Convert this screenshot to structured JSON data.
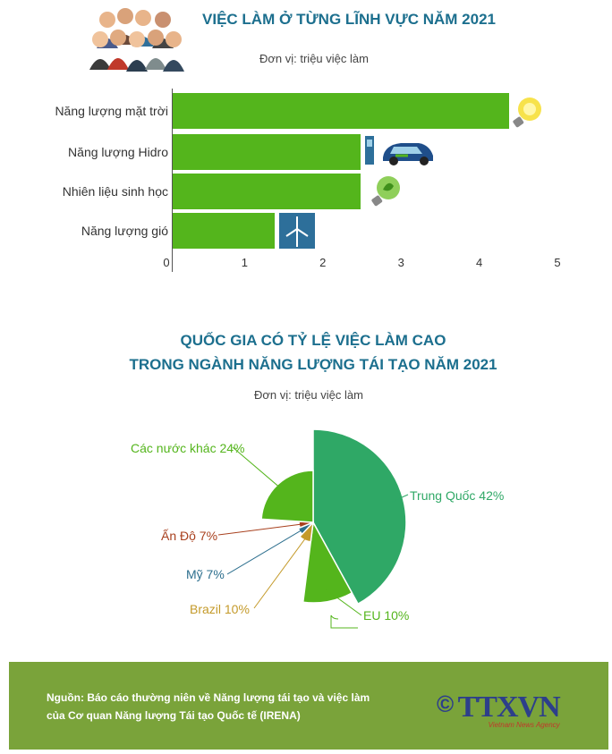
{
  "chart_data": [
    {
      "type": "bar",
      "orientation": "horizontal",
      "title": "VIỆC LÀM Ở TỪNG LĨNH VỰC NĂM 2021",
      "subtitle": "Đơn vị: triệu việc làm",
      "categories": [
        "Năng lượng mặt trời",
        "Năng lượng Hidro",
        "Nhiên liệu sinh học",
        "Năng lượng gió"
      ],
      "values": [
        4.3,
        2.4,
        2.4,
        1.3
      ],
      "xlim": [
        0,
        5
      ],
      "xticks": [
        "0",
        "1",
        "2",
        "3",
        "4",
        "5"
      ],
      "bar_color": "#54b51c"
    },
    {
      "type": "pie",
      "title_line1": "QUỐC GIA CÓ TỶ LỆ VIỆC LÀM CAO",
      "title_line2": "TRONG NGÀNH NĂNG LƯỢNG TÁI TẠO NĂM 2021",
      "subtitle": "Đơn vị: triệu việc làm",
      "slices": [
        {
          "label": "Trung Quốc 42%",
          "value": 42,
          "color": "#2fa866"
        },
        {
          "label": "EU 10%",
          "value": 10,
          "color": "#54b51c"
        },
        {
          "label": "Brazil 10%",
          "value": 10,
          "color": "#c49a2a"
        },
        {
          "label": "Mỹ 7%",
          "value": 7,
          "color": "#2d6f8e"
        },
        {
          "label": "Ấn Độ 7%",
          "value": 7,
          "color": "#a8401e"
        },
        {
          "label": "Các nước khác 24%",
          "value": 24,
          "color": "#54b51c"
        }
      ]
    }
  ],
  "footer": {
    "source_line1": "Nguồn: Báo cáo thường niên về Năng lượng tái tạo và việc làm",
    "source_line2": "của Cơ quan Năng lượng Tái tạo Quốc tế (IRENA)",
    "copyright": "©",
    "logo_text": "TTXVN",
    "logo_subtext": "Vietnam News Agency"
  },
  "colors": {
    "title": "#1c6f8e",
    "footer_bg": "#7aa33a"
  }
}
